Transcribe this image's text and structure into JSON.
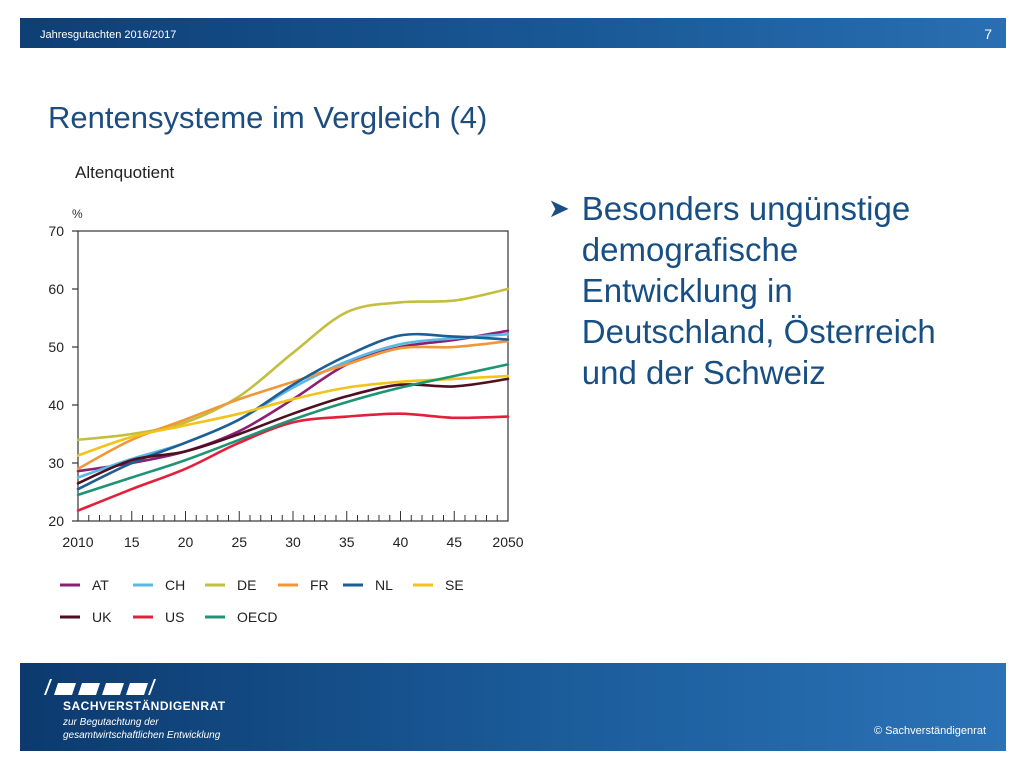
{
  "header": {
    "left_text": "Jahresgutachten  2016/2017",
    "page_number": "7"
  },
  "title": "Rentensysteme im Vergleich (4)",
  "bullet": {
    "text_lines": [
      "Besonders ungünstige",
      "demografische",
      "Entwicklung in",
      "Deutschland, Österreich",
      "und der Schweiz"
    ]
  },
  "footer": {
    "org_name": "SACHVERSTÄNDIGENRAT",
    "subtitle_lines": [
      "zur Begutachtung der",
      "gesamtwirtschaftlichen Entwicklung"
    ],
    "copyright": "© Sachverständigenrat"
  },
  "chart_data": {
    "type": "line",
    "title": "Altenquotient",
    "ylabel": "%",
    "xlim": [
      2010,
      2050
    ],
    "ylim": [
      20,
      70
    ],
    "yticks": [
      20,
      30,
      40,
      50,
      60,
      70
    ],
    "xtick_labels": [
      {
        "x": 2010,
        "label": "2010"
      },
      {
        "x": 2015,
        "label": "15"
      },
      {
        "x": 2020,
        "label": "20"
      },
      {
        "x": 2025,
        "label": "25"
      },
      {
        "x": 2030,
        "label": "30"
      },
      {
        "x": 2035,
        "label": "35"
      },
      {
        "x": 2040,
        "label": "40"
      },
      {
        "x": 2045,
        "label": "45"
      },
      {
        "x": 2050,
        "label": "2050"
      }
    ],
    "grid": false,
    "legend_position": "bottom",
    "x": [
      2010,
      2015,
      2020,
      2025,
      2030,
      2035,
      2040,
      2045,
      2050
    ],
    "series": [
      {
        "name": "AT",
        "color": "#8b1f74",
        "values": [
          28.6,
          30.0,
          32.0,
          35.5,
          41.0,
          47.0,
          50.0,
          51.2,
          52.8
        ]
      },
      {
        "name": "CH",
        "color": "#5bb8e6",
        "values": [
          27.5,
          30.7,
          33.5,
          37.5,
          43.0,
          47.5,
          50.5,
          51.5,
          52.2
        ]
      },
      {
        "name": "DE",
        "color": "#c3bf3d",
        "values": [
          34.0,
          35.0,
          37.0,
          41.5,
          49.0,
          56.0,
          57.7,
          58.0,
          60.0
        ]
      },
      {
        "name": "FR",
        "color": "#f0973a",
        "values": [
          29.0,
          34.0,
          37.5,
          41.0,
          44.0,
          47.0,
          49.8,
          50.0,
          51.0
        ]
      },
      {
        "name": "NL",
        "color": "#1d5e95",
        "values": [
          25.5,
          30.0,
          33.5,
          37.5,
          43.5,
          48.5,
          52.0,
          51.8,
          51.3
        ]
      },
      {
        "name": "SE",
        "color": "#f2c318",
        "values": [
          31.3,
          34.5,
          36.5,
          38.5,
          41.0,
          43.0,
          44.0,
          44.5,
          45.0
        ]
      },
      {
        "name": "UK",
        "color": "#4e1020",
        "values": [
          26.5,
          30.5,
          32.0,
          35.0,
          38.5,
          41.5,
          43.5,
          43.2,
          44.5
        ]
      },
      {
        "name": "US",
        "color": "#e3203b",
        "values": [
          21.8,
          25.5,
          29.0,
          33.5,
          37.0,
          38.0,
          38.5,
          37.8,
          38.0
        ]
      },
      {
        "name": "OECD",
        "color": "#1f9374",
        "values": [
          24.5,
          27.5,
          30.5,
          34.0,
          37.5,
          40.5,
          43.0,
          45.0,
          47.0
        ]
      }
    ]
  }
}
